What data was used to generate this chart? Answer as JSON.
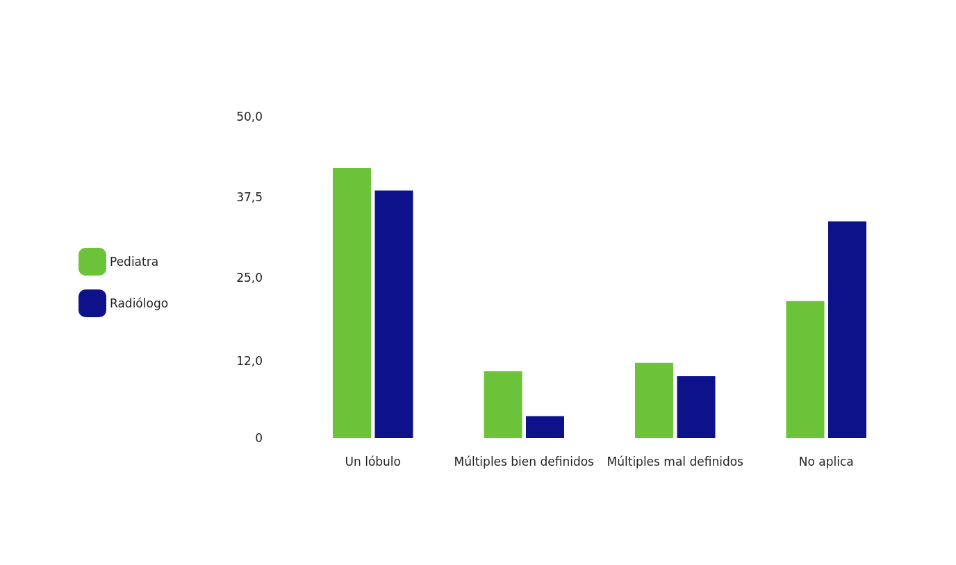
{
  "chart_data": {
    "type": "bar",
    "categories": [
      "Un lóbulo",
      "Múltiples bien definidos",
      "Múltiples mal definidos",
      "No aplica"
    ],
    "series": [
      {
        "name": "Pediatra",
        "color": "#6cc33a",
        "values": [
          42,
          10.4,
          11.7,
          21.3
        ]
      },
      {
        "name": "Radiólogo",
        "color": "#0d128a",
        "values": [
          38.5,
          3.4,
          9.6,
          33.7
        ]
      }
    ],
    "ylim": [
      0,
      50
    ],
    "yticks": [
      0,
      {
        "value": 12,
        "label": "12,0"
      },
      {
        "value": 25,
        "label": "25,0"
      },
      {
        "value": 37.5,
        "label": "37,5"
      },
      {
        "value": 50,
        "label": "50,0"
      }
    ],
    "grid": false,
    "legend": "left"
  }
}
